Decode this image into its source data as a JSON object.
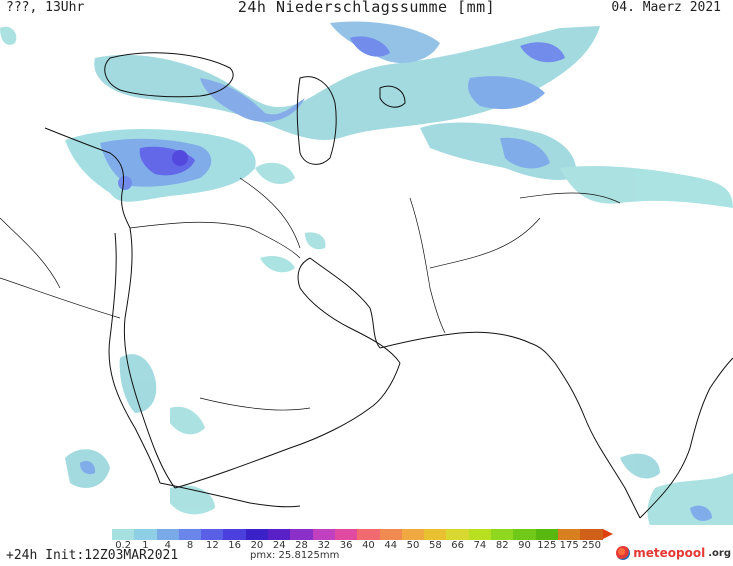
{
  "header": {
    "left": "???, 13Uhr",
    "title": "24h Niederschlagssumme [mm]",
    "date": "04. Maerz 2021"
  },
  "legend": {
    "colors": [
      "#a7e0e0",
      "#8fcfe6",
      "#7aa9e8",
      "#6a86ea",
      "#5a60e6",
      "#4b40de",
      "#3a22c8",
      "#5a20c8",
      "#8a30c8",
      "#c040c0",
      "#e04aa0",
      "#f06a70",
      "#f08a50",
      "#f0a840",
      "#e8c030",
      "#d8d830",
      "#b8e020",
      "#90d820",
      "#70c818",
      "#58b810",
      "#d88020",
      "#d06018"
    ],
    "labels": [
      "0.2",
      "1",
      "4",
      "8",
      "12",
      "16",
      "20",
      "24",
      "28",
      "32",
      "36",
      "40",
      "44",
      "50",
      "58",
      "66",
      "74",
      "82",
      "90",
      "125",
      "175",
      "250"
    ],
    "arrow_color": "#e04010"
  },
  "footer": {
    "run": "+24h Init:12Z03MAR2021",
    "pmx": "pmx: 25.8125mm"
  },
  "logo": {
    "text_a": "meteo",
    "text_b": "pool",
    "text_c": ".org"
  }
}
